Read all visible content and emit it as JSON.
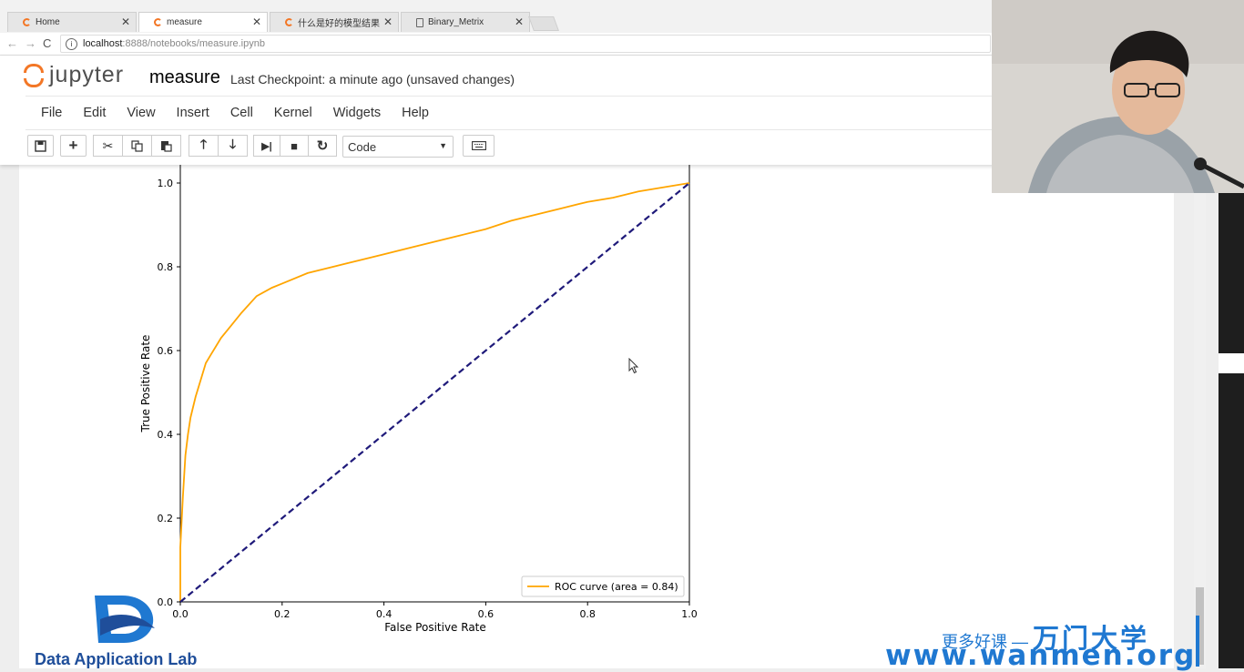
{
  "browser": {
    "tabs": [
      {
        "label": "Home",
        "icon": "jupyter-icon"
      },
      {
        "label": "measure",
        "icon": "jupyter-icon"
      },
      {
        "label": "什么是好的模型结果",
        "icon": "jupyter-icon"
      },
      {
        "label": "Binary_Metrix",
        "icon": "document-icon"
      }
    ],
    "url_host": "localhost",
    "url_path": ":8888/notebooks/measure.ipynb"
  },
  "jupyter": {
    "brand": "jupyter",
    "notebook_name": "measure",
    "checkpoint": "Last Checkpoint: a minute ago (unsaved changes)",
    "menu": [
      "File",
      "Edit",
      "View",
      "Insert",
      "Cell",
      "Kernel",
      "Widgets",
      "Help"
    ],
    "cell_type": "Code"
  },
  "chart_data": {
    "type": "line",
    "xlabel": "False Positive Rate",
    "ylabel": "True Positive Rate",
    "xlim": [
      0.0,
      1.0
    ],
    "ylim": [
      0.0,
      1.0
    ],
    "xticks": [
      "0.0",
      "0.2",
      "0.4",
      "0.6",
      "0.8",
      "1.0"
    ],
    "yticks": [
      "0.0",
      "0.2",
      "0.4",
      "0.6",
      "0.8",
      "1.0"
    ],
    "legend_placement": "lower-right",
    "grid": false,
    "series": [
      {
        "name": "ROC curve (area = 0.84)",
        "color": "#ffa500",
        "style": "solid",
        "x": [
          0.0,
          0.0,
          0.005,
          0.01,
          0.015,
          0.02,
          0.03,
          0.04,
          0.05,
          0.06,
          0.08,
          0.1,
          0.12,
          0.15,
          0.18,
          0.2,
          0.25,
          0.3,
          0.35,
          0.4,
          0.45,
          0.5,
          0.55,
          0.6,
          0.65,
          0.7,
          0.75,
          0.8,
          0.85,
          0.9,
          0.95,
          1.0
        ],
        "y": [
          0.0,
          0.13,
          0.25,
          0.35,
          0.4,
          0.44,
          0.49,
          0.53,
          0.57,
          0.59,
          0.63,
          0.66,
          0.69,
          0.73,
          0.75,
          0.76,
          0.785,
          0.8,
          0.815,
          0.83,
          0.845,
          0.86,
          0.875,
          0.89,
          0.91,
          0.925,
          0.94,
          0.955,
          0.965,
          0.98,
          0.99,
          1.0
        ]
      },
      {
        "name": "",
        "color": "#1f1a7a",
        "style": "dashed",
        "x": [
          0.0,
          1.0
        ],
        "y": [
          0.0,
          1.0
        ]
      }
    ]
  },
  "watermarks": {
    "lab_name": "Data Application Lab",
    "slogan_small": "更多好课 —",
    "slogan_big": "万门大学",
    "site": "www.wanmen.org"
  },
  "colors": {
    "jupyter_orange": "#f37726",
    "roc_curve": "#ffa500",
    "diagonal": "#1f1a7a",
    "watermark_blue": "#1f78d1"
  }
}
